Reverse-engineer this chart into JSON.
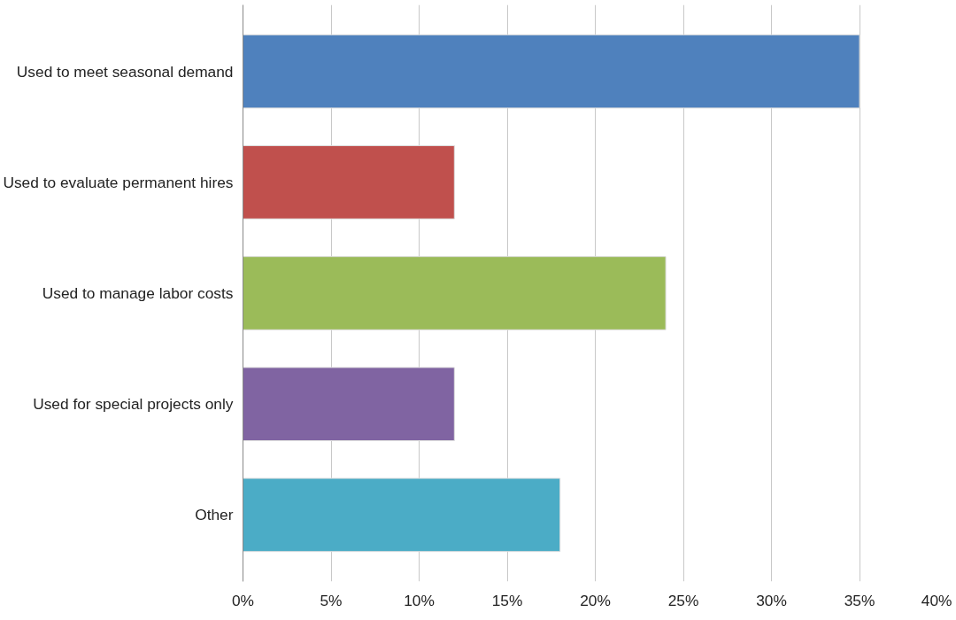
{
  "chart_data": {
    "type": "bar",
    "orientation": "horizontal",
    "categories": [
      "Used to meet seasonal demand",
      "Used to evaluate permanent hires",
      "Used to manage labor costs",
      "Used for special projects only",
      "Other"
    ],
    "values": [
      35,
      12,
      24,
      12,
      18
    ],
    "colors": [
      "#4f81bd",
      "#c0504d",
      "#9bbb59",
      "#8064a2",
      "#4bacc6"
    ],
    "xlim": [
      0,
      40
    ],
    "xticks": [
      {
        "value": 0,
        "label": "0%"
      },
      {
        "value": 5,
        "label": "5%"
      },
      {
        "value": 10,
        "label": "10%"
      },
      {
        "value": 15,
        "label": "15%"
      },
      {
        "value": 20,
        "label": "20%"
      },
      {
        "value": 25,
        "label": "25%"
      },
      {
        "value": 30,
        "label": "30%"
      },
      {
        "value": 35,
        "label": "35%"
      },
      {
        "value": 40,
        "label": "40%"
      }
    ],
    "grid": "x"
  }
}
